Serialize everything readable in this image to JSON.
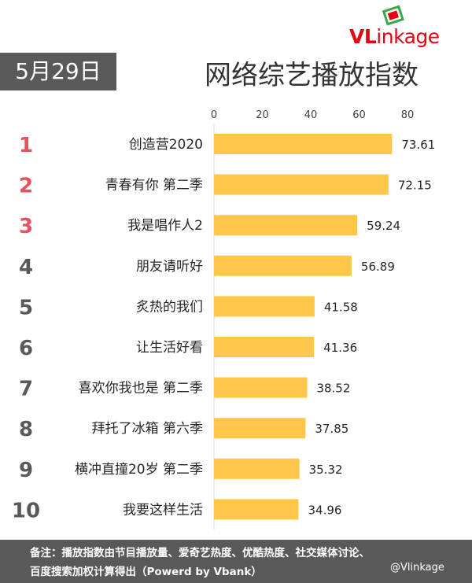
{
  "logo": {
    "text_v": "VL",
    "text_rest": "inkage"
  },
  "date_label": "5月29日",
  "chart_data": {
    "type": "bar",
    "orientation": "horizontal",
    "title": "网络综艺播放指数",
    "xlim": [
      0,
      80
    ],
    "ticks": [
      "0",
      "20",
      "40",
      "60",
      "80"
    ],
    "grid": false,
    "ranks": [
      "1",
      "2",
      "3",
      "4",
      "5",
      "6",
      "7",
      "8",
      "9",
      "10"
    ],
    "categories": [
      "创造营2020",
      "青春有你 第二季",
      "我是唱作人2",
      "朋友请听好",
      "炙热的我们",
      "让生活好看",
      "喜欢你我也是 第二季",
      "拜托了冰箱 第六季",
      "横冲直撞20岁 第二季",
      "我要这样生活"
    ],
    "values": [
      73.61,
      72.15,
      59.24,
      56.89,
      41.58,
      41.36,
      38.52,
      37.85,
      35.32,
      34.96
    ],
    "value_labels": [
      "73.61",
      "72.15",
      "59.24",
      "56.89",
      "41.58",
      "41.36",
      "38.52",
      "37.85",
      "35.32",
      "34.96"
    ],
    "bar_color": "#ffc74a",
    "top_rank_color": "#e8505b",
    "rank_color": "#595959"
  },
  "footer": {
    "line1": "备注：播放指数由节目播放量、爱奇艺热度、优酷热度、社交媒体讨论、",
    "line2": "百度搜索加权计算得出（Powerd by Vbank）"
  },
  "watermark": "@Vlinkage"
}
